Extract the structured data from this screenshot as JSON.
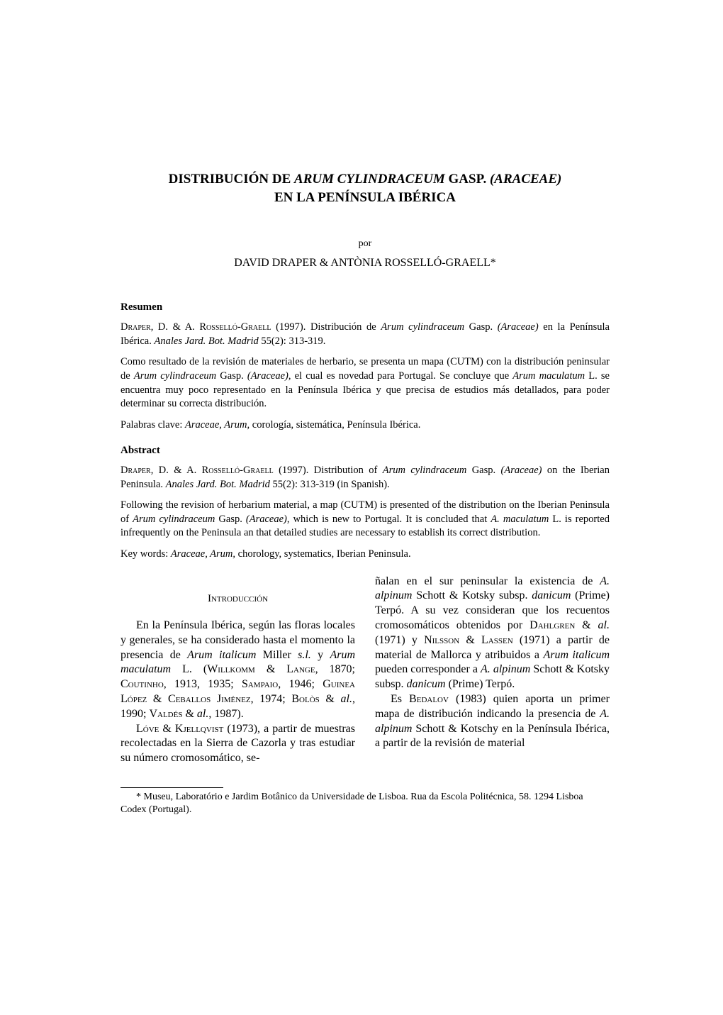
{
  "title_line1": "DISTRIBUCIÓN DE ",
  "title_italic1": "ARUM CYLINDRACEUM",
  "title_line1b": " GASP. ",
  "title_italic2": "(ARACEAE)",
  "title_line2": "EN LA PENÍNSULA IBÉRICA",
  "por": "por",
  "authors": "DAVID DRAPER & ANTÒNIA ROSSELLÓ-GRAELL*",
  "resumen": {
    "header": "Resumen",
    "citation_authors": "Draper, D. & A. Rosselló-Graell",
    "citation_year": " (1997). Distribución de ",
    "citation_species": "Arum cylindraceum",
    "citation_rest1": " Gasp. ",
    "citation_family": "(Araceae)",
    "citation_rest2": " en la Península Ibérica. ",
    "citation_journal": "Anales Jard. Bot. Madrid",
    "citation_pages": " 55(2): 313-319.",
    "body1": "Como resultado de la revisión de materiales de herbario, se presenta un mapa (CUTM) con la distribución peninsular de ",
    "body_sp1": "Arum cylindraceum",
    "body2": " Gasp. ",
    "body_fam": "(Araceae)",
    "body3": ", el cual es novedad para Portugal. Se concluye que ",
    "body_sp2": "Arum maculatum",
    "body4": " L. se encuentra muy poco representado en la Península Ibérica y que precisa de estudios más detallados, para poder determinar su correcta distribución.",
    "keywords_label": "Palabras clave: ",
    "keywords_it": "Araceae, Arum,",
    "keywords_rest": " corología, sistemática, Península Ibérica."
  },
  "abstract": {
    "header": "Abstract",
    "citation_authors": "Draper, D. & A. Rosselló-Graell",
    "citation_year": " (1997). Distribution of ",
    "citation_species": "Arum cylindraceum",
    "citation_rest1": " Gasp. ",
    "citation_family": "(Araceae)",
    "citation_rest2": " on the Iberian Peninsula. ",
    "citation_journal": "Anales Jard. Bot. Madrid",
    "citation_pages": " 55(2): 313-319 (in Spanish).",
    "body1": "Following the revision of herbarium material, a map (CUTM) is presented of the distribution on the Iberian Peninsula of ",
    "body_sp1": "Arum cylindraceum",
    "body2": " Gasp. ",
    "body_fam": "(Araceae)",
    "body3": ", which is new to Portugal. It is concluded that ",
    "body_sp2": "A. maculatum",
    "body4": " L. is reported infrequently on the Peninsula an that detailed studies are necessary to establish its correct distribution.",
    "keywords_label": "Key words: ",
    "keywords_it": "Araceae, Arum,",
    "keywords_rest": " chorology, systematics, Iberian Peninsula."
  },
  "intro_heading": "Introducción",
  "col1": {
    "p1a": "En la Península Ibérica, según las floras locales y generales, se ha considerado hasta el momento la presencia de ",
    "p1_sp1": "Arum italicum",
    "p1b": " Miller ",
    "p1_sl": "s.l.",
    "p1c": " y ",
    "p1_sp2": "Arum maculatum",
    "p1d": " L. (",
    "p1_sc1": "Willkomm & Lange",
    "p1e": ", 1870; ",
    "p1_sc2": "Coutinho",
    "p1f": ", 1913, 1935; ",
    "p1_sc3": "Sampaio",
    "p1g": ", 1946; ",
    "p1_sc4": "Guinea López & Ceballos Jiménez",
    "p1h": ", 1974; ",
    "p1_sc5": "Bolòs",
    "p1i": " & ",
    "p1_al1": "al.",
    "p1j": ", 1990; ",
    "p1_sc6": "Valdés",
    "p1k": " & ",
    "p1_al2": "al.",
    "p1l": ", 1987).",
    "p2_sc": "Lóve & Kjellqvist",
    "p2a": " (1973), a partir de muestras recolectadas en la Sierra de Cazorla y tras estudiar su número cromosomático, se-"
  },
  "col2": {
    "p1a": "ñalan en el sur peninsular la existencia de ",
    "p1_sp1": "A. alpinum",
    "p1b": " Schott & Kotsky subsp. ",
    "p1_sp2": "danicum",
    "p1c": " (Prime) Terpó. A su vez consideran que los recuentos cromosomáticos obtenidos por ",
    "p1_sc1": "Dahlgren",
    "p1d": " & ",
    "p1_al1": "al.",
    "p1e": " (1971) y ",
    "p1_sc2": "Nilsson & Lassen",
    "p1f": " (1971) a partir de material de Mallorca y atribuidos a ",
    "p1_sp3": "Arum italicum",
    "p1g": " pueden corresponder a ",
    "p1_sp4": "A. alpinum",
    "p1h": " Schott & Kotsky subsp. ",
    "p1_sp5": "danicum",
    "p1i": " (Prime) Terpó.",
    "p2a": "Es ",
    "p2_sc": "Bedalov",
    "p2b": " (1983) quien aporta un primer mapa de distribución indicando la presencia de ",
    "p2_sp": "A. alpinum",
    "p2c": " Schott & Kotschy en la Península Ibérica, a partir de la revisión de material"
  },
  "footnote": "* Museu, Laboratório e Jardim Botânico da Universidade de Lisboa. Rua da Escola Politécnica, 58. 1294 Lisboa Codex (Portugal)."
}
